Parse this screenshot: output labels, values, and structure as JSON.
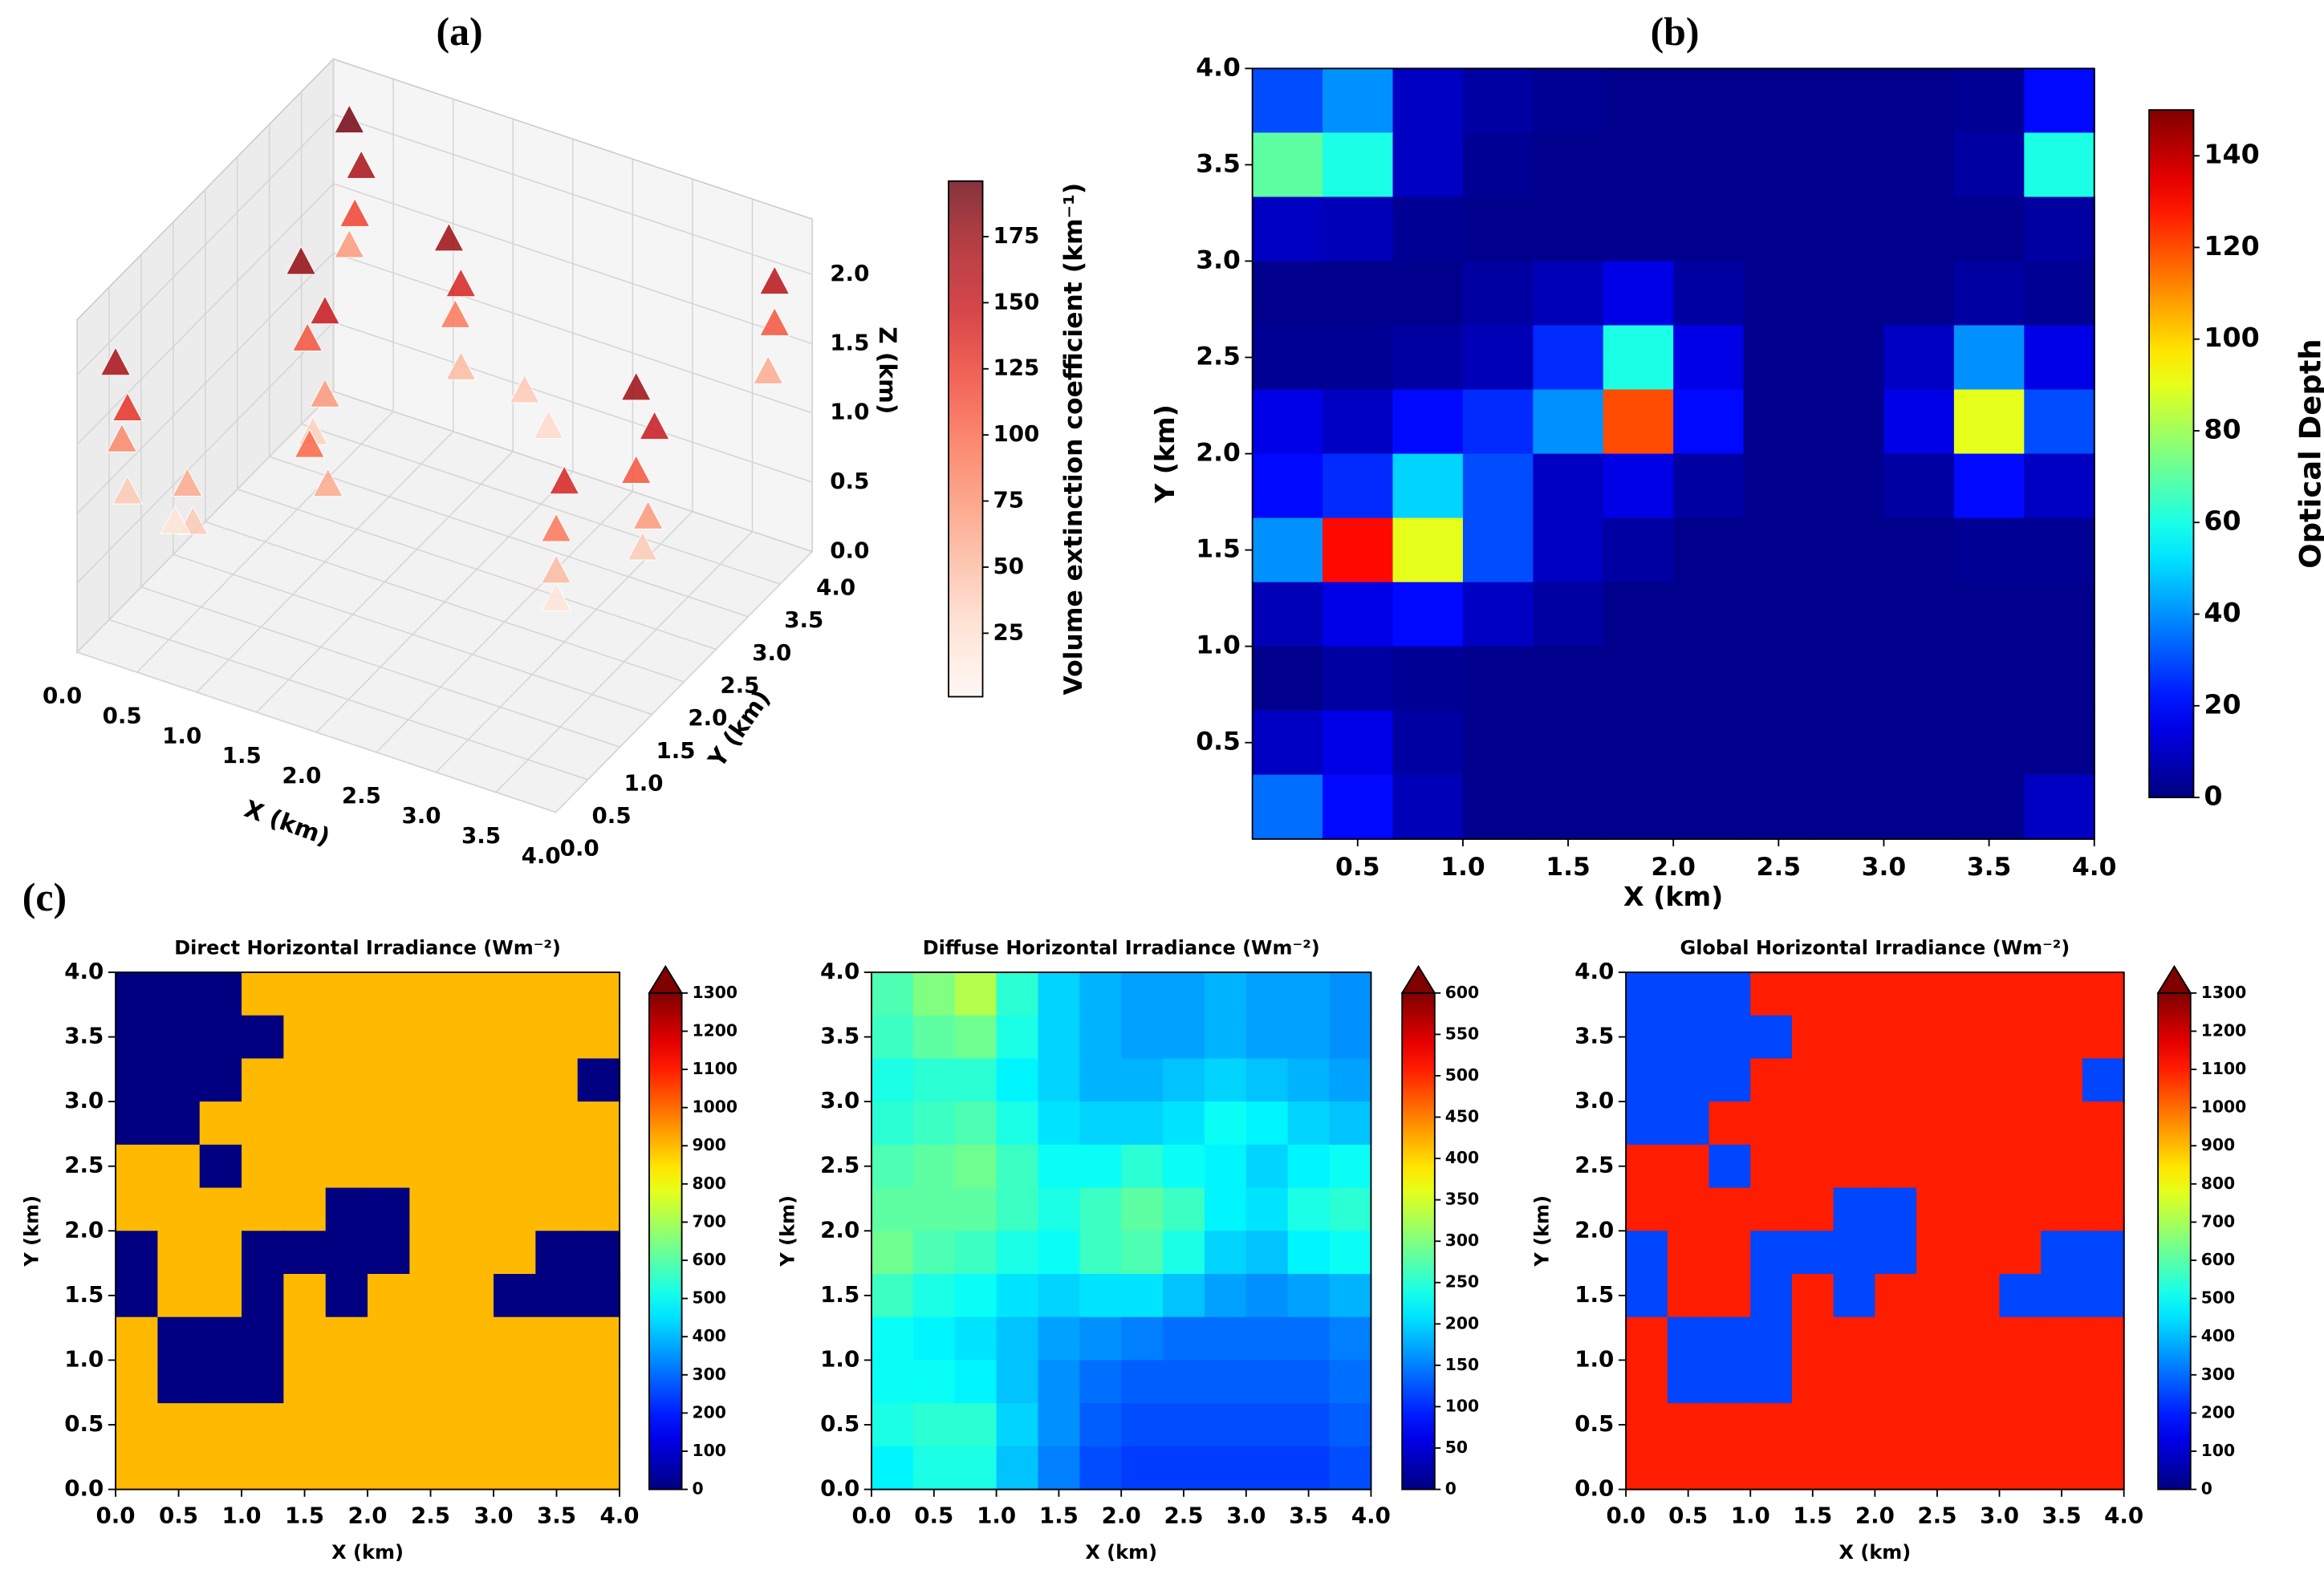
{
  "chart_data": [
    {
      "type": "scatter3d",
      "panel_label": "(a)",
      "colormap": "Reds",
      "x": [
        0.4,
        0.5,
        0.5,
        0.4,
        3.9,
        3.9,
        3.9,
        1.5,
        1.6,
        1.5,
        1.6,
        2.4,
        2.6,
        0.8,
        1.0,
        0.8,
        1.0,
        0.9,
        3.6,
        3.7,
        3.6,
        3.7,
        3.6,
        3.0,
        1.3,
        1.4,
        3.2,
        3.2,
        3.2,
        0.0,
        0.1,
        0.0,
        0.1,
        0.6,
        0.7,
        0.5
      ],
      "y": [
        3.5,
        3.5,
        3.4,
        3.5,
        3.6,
        3.6,
        3.5,
        3.0,
        3.0,
        3.1,
        3.0,
        2.5,
        2.5,
        2.0,
        2.0,
        2.1,
        2.0,
        2.0,
        2.0,
        2.1,
        2.0,
        2.0,
        2.1,
        2.0,
        1.2,
        1.3,
        1.5,
        1.5,
        1.5,
        0.6,
        0.6,
        0.7,
        0.6,
        0.6,
        0.5,
        0.6
      ],
      "z": [
        2.3,
        2.0,
        1.7,
        1.4,
        2.1,
        1.8,
        1.5,
        2.0,
        1.7,
        1.4,
        1.1,
        1.4,
        1.2,
        2.1,
        1.8,
        1.5,
        1.2,
        0.9,
        2.0,
        1.7,
        1.4,
        1.1,
        0.8,
        1.15,
        1.3,
        1.0,
        1.1,
        0.8,
        0.6,
        1.8,
        1.5,
        1.2,
        0.9,
        1.1,
        0.9,
        0.8
      ],
      "values": [
        190,
        170,
        120,
        70,
        160,
        110,
        60,
        175,
        140,
        90,
        50,
        40,
        30,
        180,
        150,
        110,
        70,
        35,
        175,
        150,
        110,
        70,
        40,
        140,
        100,
        60,
        90,
        50,
        20,
        170,
        130,
        80,
        40,
        60,
        40,
        20
      ],
      "xlim": [
        0,
        4
      ],
      "ylim": [
        0,
        4
      ],
      "zlim": [
        0,
        2.4
      ],
      "xticks": [
        {
          "value": 0,
          "label": "0.0"
        },
        0.5,
        {
          "value": 1,
          "label": "1.0"
        },
        1.5,
        {
          "value": 2,
          "label": "2.0"
        },
        2.5,
        {
          "value": 3,
          "label": "3.0"
        },
        3.5,
        {
          "value": 4,
          "label": "4.0"
        }
      ],
      "yticks": [
        {
          "value": 0,
          "label": "0.0"
        },
        0.5,
        {
          "value": 1,
          "label": "1.0"
        },
        1.5,
        {
          "value": 2,
          "label": "2.0"
        },
        2.5,
        {
          "value": 3,
          "label": "3.0"
        },
        3.5,
        {
          "value": 4,
          "label": "4.0"
        }
      ],
      "zticks": [
        {
          "value": 0,
          "label": "0.0"
        },
        0.5,
        {
          "value": 1,
          "label": "1.0"
        },
        1.5,
        {
          "value": 2,
          "label": "2.0"
        }
      ],
      "xlabel": "X (km)",
      "ylabel": "Y (km)",
      "zlabel": "Z (km)",
      "colorbar": {
        "label": "Volume extinction coefficient (km⁻¹)",
        "clim": [
          1,
          196
        ],
        "ticks": [
          25,
          50,
          75,
          100,
          125,
          150,
          175
        ]
      }
    },
    {
      "type": "heatmap",
      "panel_label": "(b)",
      "colormap": "jet",
      "origin": "upper",
      "z": [
        [
          30,
          40,
          10,
          5,
          3,
          2,
          2,
          2,
          2,
          2,
          3,
          20
        ],
        [
          70,
          60,
          10,
          3,
          2,
          2,
          2,
          2,
          2,
          2,
          5,
          60
        ],
        [
          10,
          8,
          3,
          2,
          2,
          2,
          2,
          2,
          2,
          2,
          2,
          5
        ],
        [
          2,
          2,
          2,
          5,
          8,
          15,
          5,
          2,
          2,
          2,
          5,
          3
        ],
        [
          3,
          3,
          5,
          8,
          25,
          60,
          15,
          2,
          2,
          10,
          40,
          15
        ],
        [
          15,
          10,
          20,
          25,
          40,
          120,
          20,
          2,
          2,
          15,
          90,
          30
        ],
        [
          20,
          25,
          50,
          30,
          10,
          15,
          5,
          2,
          2,
          5,
          20,
          10
        ],
        [
          40,
          130,
          90,
          30,
          10,
          5,
          2,
          2,
          2,
          2,
          3,
          3
        ],
        [
          8,
          15,
          20,
          10,
          5,
          2,
          2,
          2,
          2,
          2,
          2,
          2
        ],
        [
          2,
          5,
          3,
          2,
          2,
          2,
          2,
          2,
          2,
          2,
          2,
          2
        ],
        [
          10,
          15,
          5,
          2,
          2,
          2,
          2,
          2,
          2,
          2,
          2,
          2
        ],
        [
          35,
          20,
          8,
          2,
          2,
          2,
          2,
          2,
          2,
          2,
          2,
          10
        ]
      ],
      "xlim": [
        0,
        4
      ],
      "ylim": [
        0,
        4
      ],
      "xticks": [
        0.5,
        {
          "value": 1,
          "label": "1.0"
        },
        1.5,
        {
          "value": 2,
          "label": "2.0"
        },
        2.5,
        {
          "value": 3,
          "label": "3.0"
        },
        3.5,
        {
          "value": 4,
          "label": "4.0"
        }
      ],
      "yticks": [
        0.5,
        {
          "value": 1,
          "label": "1.0"
        },
        1.5,
        {
          "value": 2,
          "label": "2.0"
        },
        2.5,
        {
          "value": 3,
          "label": "3.0"
        },
        3.5,
        {
          "value": 4,
          "label": "4.0"
        }
      ],
      "xlabel": "X (km)",
      "ylabel": "Y (km)",
      "colorbar": {
        "label": "Optical Depth",
        "clim": [
          0,
          150
        ],
        "ticks": [
          0,
          20,
          40,
          60,
          80,
          100,
          120,
          140
        ]
      }
    },
    {
      "type": "heatmap",
      "panel_label": "(c)",
      "title": "Direct Horizontal Irradiance  (Wm⁻²)",
      "colormap": "jet",
      "origin": "upper",
      "z": [
        [
          0,
          0,
          0,
          900,
          900,
          900,
          900,
          900,
          900,
          900,
          900,
          900
        ],
        [
          0,
          0,
          0,
          0,
          900,
          900,
          900,
          900,
          900,
          900,
          900,
          900
        ],
        [
          0,
          0,
          0,
          900,
          900,
          900,
          900,
          900,
          900,
          900,
          900,
          0
        ],
        [
          0,
          0,
          900,
          900,
          900,
          900,
          900,
          900,
          900,
          900,
          900,
          900
        ],
        [
          900,
          900,
          0,
          900,
          900,
          900,
          900,
          900,
          900,
          900,
          900,
          900
        ],
        [
          900,
          900,
          900,
          900,
          900,
          0,
          0,
          900,
          900,
          900,
          900,
          900
        ],
        [
          0,
          900,
          900,
          0,
          0,
          0,
          0,
          900,
          900,
          900,
          0,
          0
        ],
        [
          0,
          900,
          900,
          0,
          900,
          0,
          900,
          900,
          900,
          0,
          0,
          0
        ],
        [
          900,
          0,
          0,
          0,
          900,
          900,
          900,
          900,
          900,
          900,
          900,
          900
        ],
        [
          900,
          0,
          0,
          0,
          900,
          900,
          900,
          900,
          900,
          900,
          900,
          900
        ],
        [
          900,
          900,
          900,
          900,
          900,
          900,
          900,
          900,
          900,
          900,
          900,
          900
        ],
        [
          900,
          900,
          900,
          900,
          900,
          900,
          900,
          900,
          900,
          900,
          900,
          900
        ]
      ],
      "xlim": [
        0,
        4
      ],
      "ylim": [
        0,
        4
      ],
      "xticks": [
        {
          "value": 0,
          "label": "0.0"
        },
        0.5,
        {
          "value": 1,
          "label": "1.0"
        },
        1.5,
        {
          "value": 2,
          "label": "2.0"
        },
        2.5,
        {
          "value": 3,
          "label": "3.0"
        },
        3.5,
        {
          "value": 4,
          "label": "4.0"
        }
      ],
      "yticks": [
        {
          "value": 0,
          "label": "0.0"
        },
        0.5,
        {
          "value": 1,
          "label": "1.0"
        },
        1.5,
        {
          "value": 2,
          "label": "2.0"
        },
        2.5,
        {
          "value": 3,
          "label": "3.0"
        },
        3.5,
        {
          "value": 4,
          "label": "4.0"
        }
      ],
      "xlabel": "X (km)",
      "ylabel": "Y (km)",
      "colorbar": {
        "clim": [
          0,
          1300
        ],
        "extend": "max",
        "ticks": [
          0,
          100,
          200,
          300,
          400,
          500,
          600,
          700,
          800,
          900,
          1000,
          1100,
          1200,
          1300
        ]
      }
    },
    {
      "type": "heatmap",
      "title": "Diffuse Horizontal Irradiance  (Wm⁻²)",
      "colormap": "jet",
      "origin": "upper",
      "z": [
        [
          270,
          300,
          330,
          250,
          200,
          180,
          170,
          170,
          180,
          170,
          170,
          160
        ],
        [
          260,
          280,
          290,
          240,
          200,
          180,
          170,
          170,
          180,
          170,
          170,
          160
        ],
        [
          240,
          250,
          250,
          220,
          200,
          180,
          180,
          190,
          200,
          190,
          180,
          170
        ],
        [
          250,
          260,
          270,
          240,
          210,
          200,
          200,
          210,
          230,
          220,
          200,
          190
        ],
        [
          270,
          280,
          290,
          260,
          230,
          230,
          250,
          230,
          220,
          200,
          220,
          230
        ],
        [
          280,
          280,
          280,
          260,
          240,
          260,
          280,
          260,
          220,
          210,
          240,
          250
        ],
        [
          290,
          270,
          260,
          240,
          230,
          260,
          270,
          240,
          200,
          190,
          220,
          230
        ],
        [
          260,
          240,
          230,
          210,
          200,
          210,
          210,
          190,
          170,
          160,
          170,
          180
        ],
        [
          230,
          220,
          210,
          190,
          170,
          160,
          150,
          140,
          140,
          140,
          140,
          150
        ],
        [
          230,
          230,
          220,
          190,
          160,
          140,
          130,
          130,
          130,
          130,
          130,
          140
        ],
        [
          240,
          250,
          250,
          200,
          160,
          130,
          120,
          120,
          120,
          120,
          120,
          130
        ],
        [
          220,
          240,
          240,
          190,
          150,
          120,
          110,
          110,
          110,
          110,
          110,
          120
        ]
      ],
      "xlim": [
        0,
        4
      ],
      "ylim": [
        0,
        4
      ],
      "xticks": [
        {
          "value": 0,
          "label": "0.0"
        },
        0.5,
        {
          "value": 1,
          "label": "1.0"
        },
        1.5,
        {
          "value": 2,
          "label": "2.0"
        },
        2.5,
        {
          "value": 3,
          "label": "3.0"
        },
        3.5,
        {
          "value": 4,
          "label": "4.0"
        }
      ],
      "yticks": [
        {
          "value": 0,
          "label": "0.0"
        },
        0.5,
        {
          "value": 1,
          "label": "1.0"
        },
        1.5,
        {
          "value": 2,
          "label": "2.0"
        },
        2.5,
        {
          "value": 3,
          "label": "3.0"
        },
        3.5,
        {
          "value": 4,
          "label": "4.0"
        }
      ],
      "xlabel": "X (km)",
      "ylabel": "Y (km)",
      "colorbar": {
        "clim": [
          0,
          600
        ],
        "extend": "max",
        "ticks": [
          0,
          50,
          100,
          150,
          200,
          250,
          300,
          350,
          400,
          450,
          500,
          550,
          600
        ]
      }
    },
    {
      "type": "heatmap",
      "title": "Global Horizontal Irradiance  (Wm⁻²)",
      "colormap": "jet",
      "origin": "upper",
      "z": [
        [
          250,
          250,
          250,
          1100,
          1100,
          1100,
          1100,
          1100,
          1100,
          1100,
          1100,
          1100
        ],
        [
          250,
          250,
          250,
          250,
          1100,
          1100,
          1100,
          1100,
          1100,
          1100,
          1100,
          1100
        ],
        [
          250,
          250,
          250,
          1100,
          1100,
          1100,
          1100,
          1100,
          1100,
          1100,
          1100,
          250
        ],
        [
          250,
          250,
          1100,
          1100,
          1100,
          1100,
          1100,
          1100,
          1100,
          1100,
          1100,
          1100
        ],
        [
          1100,
          1100,
          250,
          1100,
          1100,
          1100,
          1100,
          1100,
          1100,
          1100,
          1100,
          1100
        ],
        [
          1100,
          1100,
          1100,
          1100,
          1100,
          250,
          250,
          1100,
          1100,
          1100,
          1100,
          1100
        ],
        [
          250,
          1100,
          1100,
          250,
          250,
          250,
          250,
          1100,
          1100,
          1100,
          250,
          250
        ],
        [
          250,
          1100,
          1100,
          250,
          1100,
          250,
          1100,
          1100,
          1100,
          250,
          250,
          250
        ],
        [
          1100,
          250,
          250,
          250,
          1100,
          1100,
          1100,
          1100,
          1100,
          1100,
          1100,
          1100
        ],
        [
          1100,
          250,
          250,
          250,
          1100,
          1100,
          1100,
          1100,
          1100,
          1100,
          1100,
          1100
        ],
        [
          1100,
          1100,
          1100,
          1100,
          1100,
          1100,
          1100,
          1100,
          1100,
          1100,
          1100,
          1100
        ],
        [
          1100,
          1100,
          1100,
          1100,
          1100,
          1100,
          1100,
          1100,
          1100,
          1100,
          1100,
          1100
        ]
      ],
      "xlim": [
        0,
        4
      ],
      "ylim": [
        0,
        4
      ],
      "xticks": [
        {
          "value": 0,
          "label": "0.0"
        },
        0.5,
        {
          "value": 1,
          "label": "1.0"
        },
        1.5,
        {
          "value": 2,
          "label": "2.0"
        },
        2.5,
        {
          "value": 3,
          "label": "3.0"
        },
        3.5,
        {
          "value": 4,
          "label": "4.0"
        }
      ],
      "yticks": [
        {
          "value": 0,
          "label": "0.0"
        },
        0.5,
        {
          "value": 1,
          "label": "1.0"
        },
        1.5,
        {
          "value": 2,
          "label": "2.0"
        },
        2.5,
        {
          "value": 3,
          "label": "3.0"
        },
        3.5,
        {
          "value": 4,
          "label": "4.0"
        }
      ],
      "xlabel": "X (km)",
      "ylabel": "Y (km)",
      "colorbar": {
        "clim": [
          0,
          1300
        ],
        "extend": "max",
        "ticks": [
          0,
          100,
          200,
          300,
          400,
          500,
          600,
          700,
          800,
          900,
          1000,
          1100,
          1200,
          1300
        ]
      }
    }
  ]
}
